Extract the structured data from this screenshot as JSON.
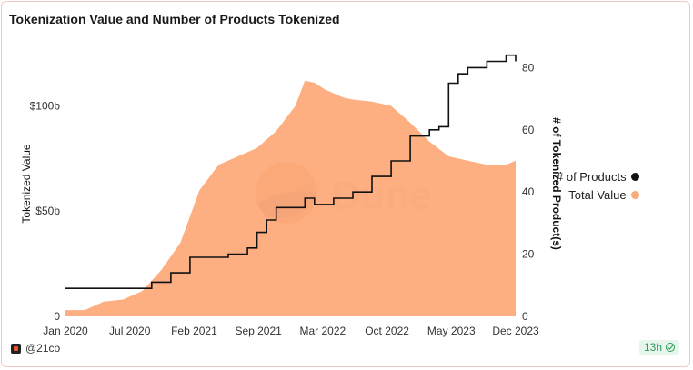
{
  "title": "Tokenization Value and Number of Products Tokenized",
  "legend": {
    "products": "# of Products",
    "value": "Total Value"
  },
  "colors": {
    "value": "#fda877",
    "products": "#111111"
  },
  "footer": {
    "author": "@21co",
    "refresh": "13h"
  },
  "watermark": "Dune",
  "chart_data": {
    "type": "area",
    "x_ticks": [
      "Jan 2020",
      "Jul 2020",
      "Feb 2021",
      "Sep 2021",
      "Mar 2022",
      "Oct 2022",
      "May 2023",
      "Dec 2023"
    ],
    "y_left": {
      "label": "Tokenized Value",
      "ticks": [
        "0",
        "$50b",
        "$100b"
      ],
      "range": [
        0,
        130
      ]
    },
    "y_right": {
      "label": "# of Tokenized Product(s)",
      "ticks": [
        "0",
        "20",
        "40",
        "60",
        "80"
      ],
      "range": [
        0,
        88
      ]
    },
    "legend_placement": "right",
    "grid": false,
    "series": [
      {
        "name": "Total Value",
        "type": "area",
        "axis": "left",
        "x": [
          "2020-01",
          "2020-03",
          "2020-05",
          "2020-07",
          "2020-09",
          "2020-11",
          "2021-01",
          "2021-03",
          "2021-05",
          "2021-07",
          "2021-09",
          "2021-11",
          "2022-01",
          "2022-02",
          "2022-03",
          "2022-04",
          "2022-05",
          "2022-06",
          "2022-07",
          "2022-09",
          "2022-11",
          "2023-01",
          "2023-03",
          "2023-05",
          "2023-07",
          "2023-09",
          "2023-11",
          "2023-12"
        ],
        "values": [
          3,
          3,
          7,
          8,
          12,
          22,
          35,
          60,
          72,
          76,
          80,
          88,
          100,
          112,
          111,
          108,
          106,
          104,
          103,
          102,
          100,
          92,
          83,
          76,
          74,
          72,
          72,
          74
        ]
      },
      {
        "name": "# of Products",
        "type": "line",
        "axis": "right",
        "x": [
          "2020-01",
          "2020-08",
          "2020-10",
          "2020-12",
          "2021-02",
          "2021-04",
          "2021-06",
          "2021-08",
          "2021-09",
          "2021-10",
          "2021-11",
          "2022-01",
          "2022-02",
          "2022-03",
          "2022-05",
          "2022-07",
          "2022-09",
          "2022-11",
          "2023-01",
          "2023-03",
          "2023-04",
          "2023-05",
          "2023-06",
          "2023-07",
          "2023-09",
          "2023-11",
          "2023-12"
        ],
        "values": [
          9,
          9,
          11,
          14,
          19,
          19,
          20,
          22,
          27,
          31,
          35,
          35,
          38,
          36,
          38,
          40,
          45,
          50,
          58,
          60,
          61,
          75,
          78,
          80,
          82,
          84,
          82
        ]
      }
    ]
  }
}
